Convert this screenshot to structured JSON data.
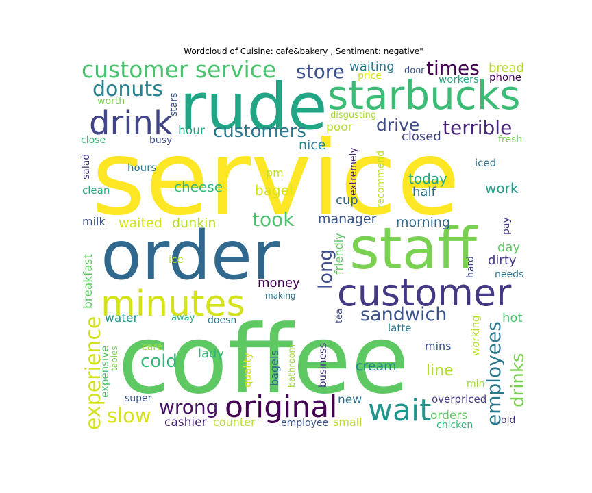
{
  "chart_data": {
    "type": "wordcloud",
    "title": "Wordcloud of Cuisine: cafe&bakery , Sentiment: negative\"",
    "colormap": "viridis",
    "words": [
      {
        "text": "service",
        "color": "#fde725"
      },
      {
        "text": "coffee",
        "color": "#5ec962"
      },
      {
        "text": "order",
        "color": "#31688e"
      },
      {
        "text": "rude",
        "color": "#21a585"
      },
      {
        "text": "staff",
        "color": "#7ad151"
      },
      {
        "text": "starbucks",
        "color": "#3bbc75"
      },
      {
        "text": "customer",
        "color": "#443983"
      },
      {
        "text": "minutes",
        "color": "#d4e21a"
      },
      {
        "text": "original",
        "color": "#440154"
      },
      {
        "text": "drink",
        "color": "#414487"
      },
      {
        "text": "customer service",
        "color": "#4ac16d"
      },
      {
        "text": "wait",
        "color": "#1f968b"
      },
      {
        "text": "experience",
        "color": "#d2e21b"
      },
      {
        "text": "employees",
        "color": "#2a788e"
      },
      {
        "text": "sandwich",
        "color": "#3b528b"
      },
      {
        "text": "donuts",
        "color": "#26828e"
      },
      {
        "text": "customers",
        "color": "#2a788e"
      },
      {
        "text": "terrible",
        "color": "#482677"
      },
      {
        "text": "slow",
        "color": "#d8e219"
      },
      {
        "text": "wrong",
        "color": "#471164"
      },
      {
        "text": "store",
        "color": "#3b528b"
      },
      {
        "text": "times",
        "color": "#440154"
      },
      {
        "text": "drinks",
        "color": "#7ad151"
      },
      {
        "text": "long",
        "color": "#3e4a89"
      },
      {
        "text": "took",
        "color": "#4ac16d"
      },
      {
        "text": "drive",
        "color": "#3e4989"
      },
      {
        "text": "cold",
        "color": "#35b779"
      },
      {
        "text": "line",
        "color": "#b5de2b"
      },
      {
        "text": "cream",
        "color": "#25858e"
      },
      {
        "text": "cheese",
        "color": "#35b779"
      },
      {
        "text": "today",
        "color": "#22a884"
      },
      {
        "text": "work",
        "color": "#1f9e89"
      },
      {
        "text": "manager",
        "color": "#39568c"
      },
      {
        "text": "morning",
        "color": "#31688e"
      },
      {
        "text": "waited",
        "color": "#d2e21b"
      },
      {
        "text": "dunkin",
        "color": "#b5de2b"
      },
      {
        "text": "money",
        "color": "#440154"
      },
      {
        "text": "bagel",
        "color": "#d8e219"
      },
      {
        "text": "nice",
        "color": "#26828e"
      },
      {
        "text": "closed",
        "color": "#414487"
      },
      {
        "text": "hour",
        "color": "#22a884"
      },
      {
        "text": "poor",
        "color": "#b5de2b"
      },
      {
        "text": "waiting",
        "color": "#2a788e"
      },
      {
        "text": "bread",
        "color": "#b8de29"
      },
      {
        "text": "half",
        "color": "#2c728e"
      },
      {
        "text": "cup",
        "color": "#31688e"
      },
      {
        "text": "day",
        "color": "#5ec962"
      },
      {
        "text": "dirty",
        "color": "#443983"
      },
      {
        "text": "hot",
        "color": "#4ac16d"
      },
      {
        "text": "lady",
        "color": "#35b779"
      },
      {
        "text": "water",
        "color": "#1f968b"
      },
      {
        "text": "new",
        "color": "#2c728e"
      },
      {
        "text": "orders",
        "color": "#5ec962"
      },
      {
        "text": "cashier",
        "color": "#482677"
      },
      {
        "text": "counter",
        "color": "#b5de2b"
      },
      {
        "text": "small",
        "color": "#b8de29"
      },
      {
        "text": "milk",
        "color": "#3b528b"
      },
      {
        "text": "pm",
        "color": "#c2df23"
      },
      {
        "text": "mins",
        "color": "#3b528b"
      },
      {
        "text": "latte",
        "color": "#2a788e"
      },
      {
        "text": "iced",
        "color": "#2c728e"
      },
      {
        "text": "hours",
        "color": "#2a788e"
      },
      {
        "text": "clean",
        "color": "#27ad81"
      },
      {
        "text": "phone",
        "color": "#440154"
      },
      {
        "text": "workers",
        "color": "#22a884"
      },
      {
        "text": "price",
        "color": "#d8e219"
      },
      {
        "text": "door",
        "color": "#39568c"
      },
      {
        "text": "worth",
        "color": "#7ad151"
      },
      {
        "text": "close",
        "color": "#35b779"
      },
      {
        "text": "busy",
        "color": "#3e4a89"
      },
      {
        "text": "fresh",
        "color": "#7ad151"
      },
      {
        "text": "disgusting",
        "color": "#a5db36"
      },
      {
        "text": "ice",
        "color": "#b5de2b"
      },
      {
        "text": "needs",
        "color": "#2c728e"
      },
      {
        "text": "making",
        "color": "#2c728e"
      },
      {
        "text": "away",
        "color": "#27ad81"
      },
      {
        "text": "doesn",
        "color": "#2a788e"
      },
      {
        "text": "care",
        "color": "#a0da39"
      },
      {
        "text": "super",
        "color": "#3b528b"
      },
      {
        "text": "employee",
        "color": "#3b528b"
      },
      {
        "text": "overpriced",
        "color": "#443983"
      },
      {
        "text": "old",
        "color": "#46327e"
      },
      {
        "text": "chicken",
        "color": "#35b779"
      },
      {
        "text": "min",
        "color": "#a0da39"
      },
      {
        "text": "stars",
        "color": "#3b528b"
      },
      {
        "text": "salad",
        "color": "#46327e"
      },
      {
        "text": "breakfast",
        "color": "#5ec962"
      },
      {
        "text": "expensive",
        "color": "#4ac16d"
      },
      {
        "text": "tables",
        "color": "#7ad151"
      },
      {
        "text": "extremely",
        "color": "#482677"
      },
      {
        "text": "recommend",
        "color": "#bddf26"
      },
      {
        "text": "friendly",
        "color": "#5ec962"
      },
      {
        "text": "quality",
        "color": "#d2e21b"
      },
      {
        "text": "bagels",
        "color": "#31688e"
      },
      {
        "text": "bathroom",
        "color": "#a0da39"
      },
      {
        "text": "business",
        "color": "#443983"
      },
      {
        "text": "tea",
        "color": "#3e4989"
      },
      {
        "text": "working",
        "color": "#b5de2b"
      },
      {
        "text": "pay",
        "color": "#46327e"
      },
      {
        "text": "hard",
        "color": "#3e4989"
      }
    ]
  }
}
